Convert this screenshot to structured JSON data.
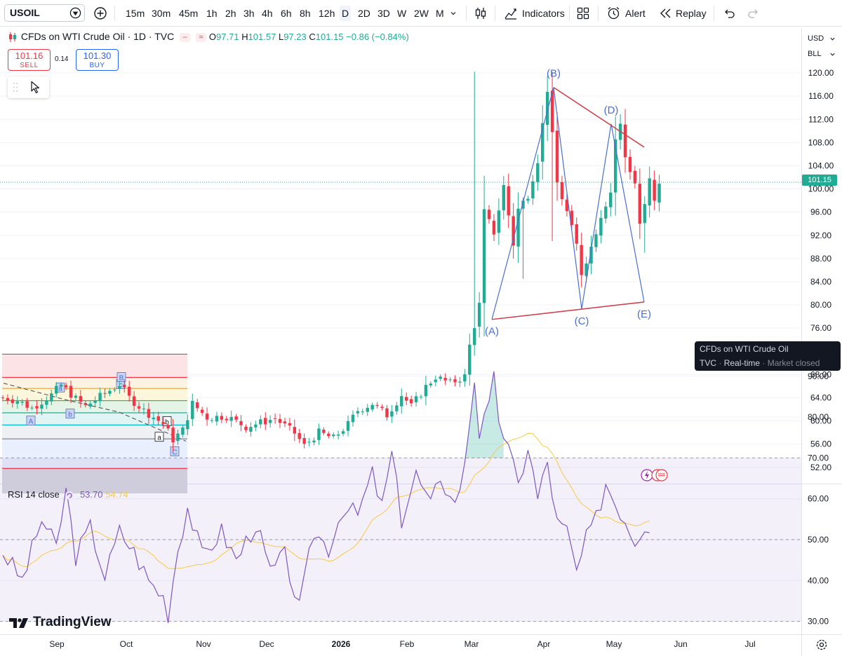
{
  "toolbar": {
    "symbol": "USOIL",
    "timeframes": [
      "15m",
      "30m",
      "45m",
      "1h",
      "2h",
      "3h",
      "4h",
      "6h",
      "8h",
      "12h",
      "D",
      "2D",
      "3D",
      "W",
      "2W",
      "M"
    ],
    "active_timeframe": "D",
    "indicators_label": "Indicators",
    "alert_label": "Alert",
    "replay_label": "Replay",
    "icons": [
      "symbol-search-icon",
      "add-compare-icon",
      "chevron-down-icon",
      "candles-icon",
      "indicators-icon",
      "layout-icon",
      "alert-icon",
      "replay-icon",
      "undo-icon",
      "redo-icon"
    ]
  },
  "legend": {
    "title": "CFDs on WTI Crude Oil · 1D · TVC",
    "o_label": "O",
    "open": "97.71",
    "h_label": "H",
    "high": "101.57",
    "l_label": "L",
    "low": "97.23",
    "c_label": "C",
    "close": "101.15",
    "change": "−0.86 (−0.84%)"
  },
  "trade": {
    "sell_price": "101.16",
    "sell_label": "SELL",
    "spread": "0.14",
    "buy_price": "101.30",
    "buy_label": "BUY"
  },
  "price_scale": {
    "currency": "USD",
    "unit": "BLL",
    "last_price": "101.15",
    "ticks": [
      "120.00",
      "116.00",
      "112.00",
      "108.00",
      "104.00",
      "100.00",
      "96.00",
      "92.00",
      "88.00",
      "84.00",
      "80.00",
      "76.00",
      "68.00",
      "64.00",
      "60.00",
      "56.00",
      "52.00"
    ]
  },
  "wave_labels": [
    "(A)",
    "(B)",
    "(C)",
    "(D)",
    "(E)"
  ],
  "sub_wave_labels": [
    "A",
    "a",
    "b",
    "c",
    "B",
    "a",
    "b",
    "C"
  ],
  "tooltip": {
    "title": "CFDs on WTI Crude Oil",
    "source": "TVC",
    "feed": "Real-time",
    "status": "Market closed"
  },
  "rsi": {
    "label": "RSI 14 close",
    "value": "53.70",
    "ma_value": "54.74",
    "ticks": [
      "90.00",
      "80.00",
      "70.00",
      "60.00",
      "50.00",
      "40.00",
      "30.00"
    ]
  },
  "time_axis": [
    "Sep",
    "Oct",
    "Nov",
    "Dec",
    "2026",
    "Feb",
    "Mar",
    "Apr",
    "May",
    "Jun",
    "Jul"
  ],
  "branding": "TradingView",
  "colors": {
    "up": "#22ab94",
    "down": "#f23645",
    "pattern": "#4a6fd4",
    "trendline": "#d0444f",
    "rsi": "#7e57c2",
    "rsi_ma": "#f7c948"
  },
  "chart_data": {
    "type": "candlestick",
    "y_range": [
      50,
      122
    ],
    "rsi_range": [
      27,
      93
    ],
    "pattern_points": [
      {
        "label": "(A)",
        "t": 75,
        "price": 77.5
      },
      {
        "label": "(B)",
        "t": 94,
        "price": 117.5
      },
      {
        "label": "(C)",
        "t": 110,
        "price": 79.3
      },
      {
        "label": "(D)",
        "t": 119,
        "price": 111.2
      },
      {
        "label": "(E)",
        "t": 130,
        "price": 80.5
      }
    ],
    "resistance_line": [
      {
        "t": 94,
        "price": 117.5
      },
      {
        "t": 130,
        "price": 107.2
      }
    ],
    "support_line": [
      {
        "t": 75,
        "price": 77.5
      },
      {
        "t": 130,
        "price": 80.5
      }
    ]
  }
}
